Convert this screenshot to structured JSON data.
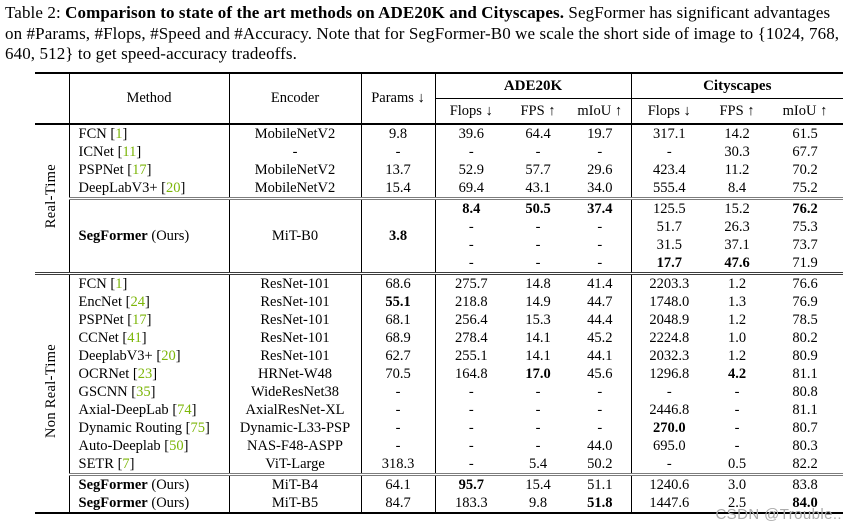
{
  "caption": {
    "prefix": "Table 2: ",
    "bold": "Comparison to state of the art methods on ADE20K and Cityscapes.",
    "rest": " SegFormer has significant advantages on #Params, #Flops, #Speed and #Accuracy. Note that for SegFormer-B0 we scale the short side of image to {1024, 768, 640, 512} to get speed-accuracy tradeoffs."
  },
  "colors": {
    "citation_green": "#7cb608",
    "watermark_gray": "#ababab",
    "rule_gray": "#7d7d7d"
  },
  "watermark": {
    "text": "CSDN @Trouble.."
  },
  "table": {
    "headers": {
      "method": "Method",
      "encoder": "Encoder",
      "params": "Params ↓",
      "groups": [
        {
          "label": "ADE20K"
        },
        {
          "label": "Cityscapes"
        }
      ],
      "subcols": [
        "Flops ↓",
        "FPS ↑",
        "mIoU ↑"
      ]
    },
    "sections": [
      {
        "label": "Real-Time",
        "blocks": [
          {
            "rows": [
              {
                "m": {
                  "name": "FCN",
                  "cite": "1"
                },
                "e": "MobileNetV2",
                "p": "9.8",
                "c": [
                  "39.6",
                  "64.4",
                  "19.7",
                  "317.1",
                  "14.2",
                  "61.5"
                ]
              },
              {
                "m": {
                  "name": "ICNet",
                  "cite": "11"
                },
                "e": "-",
                "p": "-",
                "c": [
                  "-",
                  "-",
                  "-",
                  "-",
                  "30.3",
                  "67.7"
                ]
              },
              {
                "m": {
                  "name": "PSPNet",
                  "cite": "17"
                },
                "e": "MobileNetV2",
                "p": "13.7",
                "c": [
                  "52.9",
                  "57.7",
                  "29.6",
                  "423.4",
                  "11.2",
                  "70.2"
                ]
              },
              {
                "m": {
                  "name": "DeepLabV3+",
                  "cite": "20"
                },
                "e": "MobileNetV2",
                "p": "15.4",
                "c": [
                  "69.4",
                  "43.1",
                  "34.0",
                  "555.4",
                  "8.4",
                  "75.2"
                ]
              }
            ]
          },
          {
            "merged": {
              "m": {
                "name": "SegFormer",
                "b": 1,
                "suffix": " (Ours)"
              },
              "e": "MiT-B0",
              "p": {
                "v": "3.8",
                "b": 1
              }
            },
            "rows": [
              {
                "c": [
                  {
                    "v": "8.4",
                    "b": 1
                  },
                  {
                    "v": "50.5",
                    "b": 1
                  },
                  {
                    "v": "37.4",
                    "b": 1
                  },
                  "125.5",
                  "15.2",
                  {
                    "v": "76.2",
                    "b": 1
                  }
                ]
              },
              {
                "c": [
                  "-",
                  "-",
                  "-",
                  "51.7",
                  "26.3",
                  "75.3"
                ]
              },
              {
                "c": [
                  "-",
                  "-",
                  "-",
                  "31.5",
                  "37.1",
                  "73.7"
                ]
              },
              {
                "c": [
                  "-",
                  "-",
                  "-",
                  {
                    "v": "17.7",
                    "b": 1
                  },
                  {
                    "v": "47.6",
                    "b": 1
                  },
                  "71.9"
                ]
              }
            ]
          }
        ]
      },
      {
        "label": "Non Real-Time",
        "blocks": [
          {
            "rows": [
              {
                "m": {
                  "name": "FCN",
                  "cite": "1"
                },
                "e": "ResNet-101",
                "p": "68.6",
                "c": [
                  "275.7",
                  "14.8",
                  "41.4",
                  "2203.3",
                  "1.2",
                  "76.6"
                ]
              },
              {
                "m": {
                  "name": "EncNet",
                  "cite": "24"
                },
                "e": "ResNet-101",
                "p": {
                  "v": "55.1",
                  "b": 1
                },
                "c": [
                  "218.8",
                  "14.9",
                  "44.7",
                  "1748.0",
                  "1.3",
                  "76.9"
                ]
              },
              {
                "m": {
                  "name": "PSPNet",
                  "cite": "17"
                },
                "e": "ResNet-101",
                "p": "68.1",
                "c": [
                  "256.4",
                  "15.3",
                  "44.4",
                  "2048.9",
                  "1.2",
                  "78.5"
                ]
              },
              {
                "m": {
                  "name": "CCNet",
                  "cite": "41"
                },
                "e": "ResNet-101",
                "p": "68.9",
                "c": [
                  "278.4",
                  "14.1",
                  "45.2",
                  "2224.8",
                  "1.0",
                  "80.2"
                ]
              },
              {
                "m": {
                  "name": "DeeplabV3+",
                  "cite": "20"
                },
                "e": "ResNet-101",
                "p": "62.7",
                "c": [
                  "255.1",
                  "14.1",
                  "44.1",
                  "2032.3",
                  "1.2",
                  "80.9"
                ]
              },
              {
                "m": {
                  "name": "OCRNet",
                  "cite": "23"
                },
                "e": "HRNet-W48",
                "p": "70.5",
                "c": [
                  "164.8",
                  {
                    "v": "17.0",
                    "b": 1
                  },
                  "45.6",
                  "1296.8",
                  {
                    "v": "4.2",
                    "b": 1
                  },
                  "81.1"
                ]
              },
              {
                "m": {
                  "name": "GSCNN",
                  "cite": "35"
                },
                "e": "WideResNet38",
                "p": "-",
                "c": [
                  "-",
                  "-",
                  "-",
                  "-",
                  "-",
                  "80.8"
                ]
              },
              {
                "m": {
                  "name": "Axial-DeepLab",
                  "cite": "74"
                },
                "e": "AxialResNet-XL",
                "p": "-",
                "c": [
                  "-",
                  "-",
                  "-",
                  "2446.8",
                  "-",
                  "81.1"
                ]
              },
              {
                "m": {
                  "name": "Dynamic Routing",
                  "cite": "75"
                },
                "e": "Dynamic-L33-PSP",
                "p": "-",
                "c": [
                  "-",
                  "-",
                  "-",
                  {
                    "v": "270.0",
                    "b": 1
                  },
                  "-",
                  "80.7"
                ]
              },
              {
                "m": {
                  "name": "Auto-Deeplab",
                  "cite": "50"
                },
                "e": "NAS-F48-ASPP",
                "p": "-",
                "c": [
                  "-",
                  "-",
                  "44.0",
                  "695.0",
                  "-",
                  "80.3"
                ]
              },
              {
                "m": {
                  "name": "SETR",
                  "cite": "7"
                },
                "e": "ViT-Large",
                "p": "318.3",
                "c": [
                  "-",
                  "5.4",
                  "50.2",
                  "-",
                  "0.5",
                  "82.2"
                ]
              }
            ]
          },
          {
            "rows": [
              {
                "m": {
                  "name": "SegFormer",
                  "b": 1,
                  "suffix": " (Ours)"
                },
                "e": "MiT-B4",
                "p": "64.1",
                "c": [
                  {
                    "v": "95.7",
                    "b": 1
                  },
                  "15.4",
                  "51.1",
                  "1240.6",
                  "3.0",
                  "83.8"
                ]
              },
              {
                "m": {
                  "name": "SegFormer",
                  "b": 1,
                  "suffix": " (Ours)"
                },
                "e": "MiT-B5",
                "p": "84.7",
                "c": [
                  "183.3",
                  "9.8",
                  {
                    "v": "51.8",
                    "b": 1
                  },
                  "1447.6",
                  "2.5",
                  {
                    "v": "84.0",
                    "b": 1
                  }
                ]
              }
            ]
          }
        ]
      }
    ]
  }
}
